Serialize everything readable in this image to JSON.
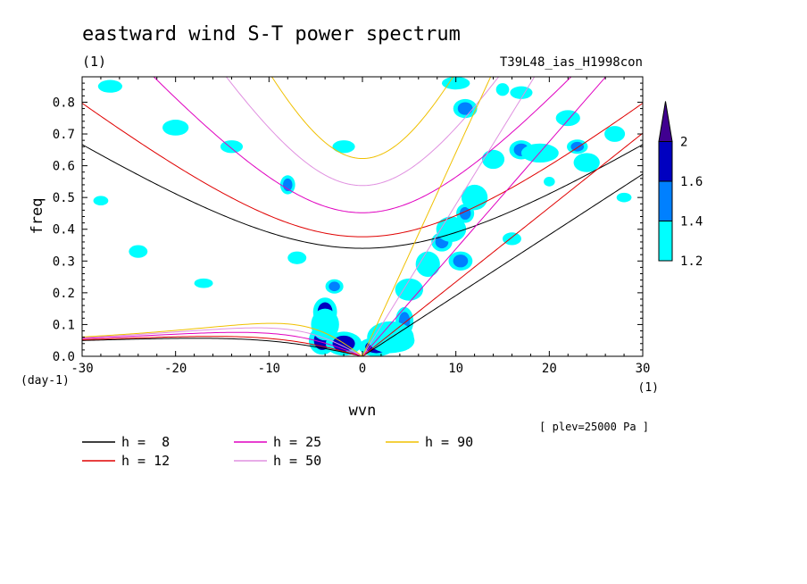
{
  "chart_data": {
    "type": "heatmap",
    "title": "eastward wind S-T power spectrum",
    "units_left": "(1)",
    "run_label": "T39L48_ias_H1998con",
    "xlabel": "wvn",
    "ylabel": "freq",
    "y_units": "(day-1)",
    "x_units": "(1)",
    "pressure_note": "[ plev=25000 Pa ]",
    "xlim": [
      -30,
      30
    ],
    "ylim": [
      0,
      0.88
    ],
    "x_ticks": [
      -30,
      -20,
      -10,
      0,
      10,
      20,
      30
    ],
    "x_tick_labels": [
      "-30",
      "-20",
      "-10",
      "0",
      "10",
      "20",
      "30"
    ],
    "y_ticks": [
      0.0,
      0.1,
      0.2,
      0.3,
      0.4,
      0.5,
      0.6,
      0.7,
      0.8
    ],
    "y_tick_labels": [
      "0.0",
      "0.1",
      "0.2",
      "0.3",
      "0.4",
      "0.5",
      "0.6",
      "0.7",
      "0.8"
    ],
    "colorbar": {
      "levels": [
        1.2,
        1.4,
        1.6,
        2
      ],
      "level_labels": [
        "1.2",
        "1.4",
        "1.6",
        "2"
      ],
      "colors": [
        "#00ffff",
        "#0080ff",
        "#0000c0",
        "#400090"
      ]
    },
    "dispersion_curves": [
      {
        "h": 8,
        "label": "h =  8",
        "color": "#000000"
      },
      {
        "h": 12,
        "label": "h = 12",
        "color": "#e00000"
      },
      {
        "h": 25,
        "label": "h = 25",
        "color": "#e000c0"
      },
      {
        "h": 50,
        "label": "h = 50",
        "color": "#e090e0"
      },
      {
        "h": 90,
        "label": "h = 90",
        "color": "#f0c000"
      }
    ],
    "blobs": [
      {
        "x": -4,
        "y": 0.14,
        "rx": 0.8,
        "ry": 0.03,
        "level": 3
      },
      {
        "x": -4.3,
        "y": 0.05,
        "rx": 0.9,
        "ry": 0.03,
        "level": 3
      },
      {
        "x": -2,
        "y": 0.04,
        "rx": 1.2,
        "ry": 0.025,
        "level": 3
      },
      {
        "x": 1.5,
        "y": 0.03,
        "rx": 1.2,
        "ry": 0.02,
        "level": 3
      },
      {
        "x": 4.5,
        "y": 0.11,
        "rx": 0.6,
        "ry": 0.03,
        "level": 2
      },
      {
        "x": 3.5,
        "y": 0.05,
        "rx": 1.3,
        "ry": 0.025,
        "level": 3
      },
      {
        "x": -3,
        "y": 0.22,
        "rx": 0.6,
        "ry": 0.015,
        "level": 2
      },
      {
        "x": 8.5,
        "y": 0.36,
        "rx": 0.7,
        "ry": 0.02,
        "level": 2
      },
      {
        "x": 10.5,
        "y": 0.3,
        "rx": 0.8,
        "ry": 0.02,
        "level": 2
      },
      {
        "x": 11,
        "y": 0.45,
        "rx": 0.6,
        "ry": 0.02,
        "level": 2
      },
      {
        "x": 17,
        "y": 0.65,
        "rx": 0.8,
        "ry": 0.02,
        "level": 2
      },
      {
        "x": 23,
        "y": 0.66,
        "rx": 0.7,
        "ry": 0.015,
        "level": 2
      },
      {
        "x": 20,
        "y": 0.55,
        "rx": 0.6,
        "ry": 0.015,
        "level": 1
      },
      {
        "x": -8,
        "y": 0.54,
        "rx": 0.5,
        "ry": 0.02,
        "level": 2
      },
      {
        "x": 11,
        "y": 0.78,
        "rx": 0.8,
        "ry": 0.02,
        "level": 2
      },
      {
        "x": 15,
        "y": 0.84,
        "rx": 0.7,
        "ry": 0.02,
        "level": 1
      },
      {
        "x": 7,
        "y": 0.29,
        "rx": 1.3,
        "ry": 0.04,
        "level": 1
      },
      {
        "x": 9.5,
        "y": 0.4,
        "rx": 1.6,
        "ry": 0.04,
        "level": 1
      },
      {
        "x": 12,
        "y": 0.5,
        "rx": 1.4,
        "ry": 0.04,
        "level": 1
      },
      {
        "x": 14,
        "y": 0.62,
        "rx": 1.2,
        "ry": 0.03,
        "level": 1
      },
      {
        "x": 19,
        "y": 0.64,
        "rx": 2.0,
        "ry": 0.03,
        "level": 1
      },
      {
        "x": 24,
        "y": 0.61,
        "rx": 1.4,
        "ry": 0.03,
        "level": 1
      },
      {
        "x": 27,
        "y": 0.7,
        "rx": 1.1,
        "ry": 0.025,
        "level": 1
      },
      {
        "x": 22,
        "y": 0.75,
        "rx": 1.3,
        "ry": 0.025,
        "level": 1
      },
      {
        "x": 10,
        "y": 0.86,
        "rx": 1.5,
        "ry": 0.02,
        "level": 1
      },
      {
        "x": 17,
        "y": 0.83,
        "rx": 1.2,
        "ry": 0.02,
        "level": 1
      },
      {
        "x": -27,
        "y": 0.85,
        "rx": 1.3,
        "ry": 0.02,
        "level": 1
      },
      {
        "x": -20,
        "y": 0.72,
        "rx": 1.4,
        "ry": 0.025,
        "level": 1
      },
      {
        "x": -14,
        "y": 0.66,
        "rx": 1.2,
        "ry": 0.02,
        "level": 1
      },
      {
        "x": -2,
        "y": 0.66,
        "rx": 1.2,
        "ry": 0.02,
        "level": 1
      },
      {
        "x": -24,
        "y": 0.33,
        "rx": 1.0,
        "ry": 0.02,
        "level": 1
      },
      {
        "x": -7,
        "y": 0.31,
        "rx": 1.0,
        "ry": 0.02,
        "level": 1
      },
      {
        "x": -17,
        "y": 0.23,
        "rx": 1.0,
        "ry": 0.015,
        "level": 1
      },
      {
        "x": 5,
        "y": 0.21,
        "rx": 1.5,
        "ry": 0.035,
        "level": 1
      },
      {
        "x": -4,
        "y": 0.1,
        "rx": 1.5,
        "ry": 0.05,
        "level": 1
      },
      {
        "x": 3,
        "y": 0.06,
        "rx": 2.5,
        "ry": 0.05,
        "level": 1
      },
      {
        "x": 16,
        "y": 0.37,
        "rx": 1.0,
        "ry": 0.02,
        "level": 1
      },
      {
        "x": -28,
        "y": 0.49,
        "rx": 0.8,
        "ry": 0.015,
        "level": 1
      },
      {
        "x": 28,
        "y": 0.5,
        "rx": 0.8,
        "ry": 0.015,
        "level": 1
      }
    ]
  }
}
